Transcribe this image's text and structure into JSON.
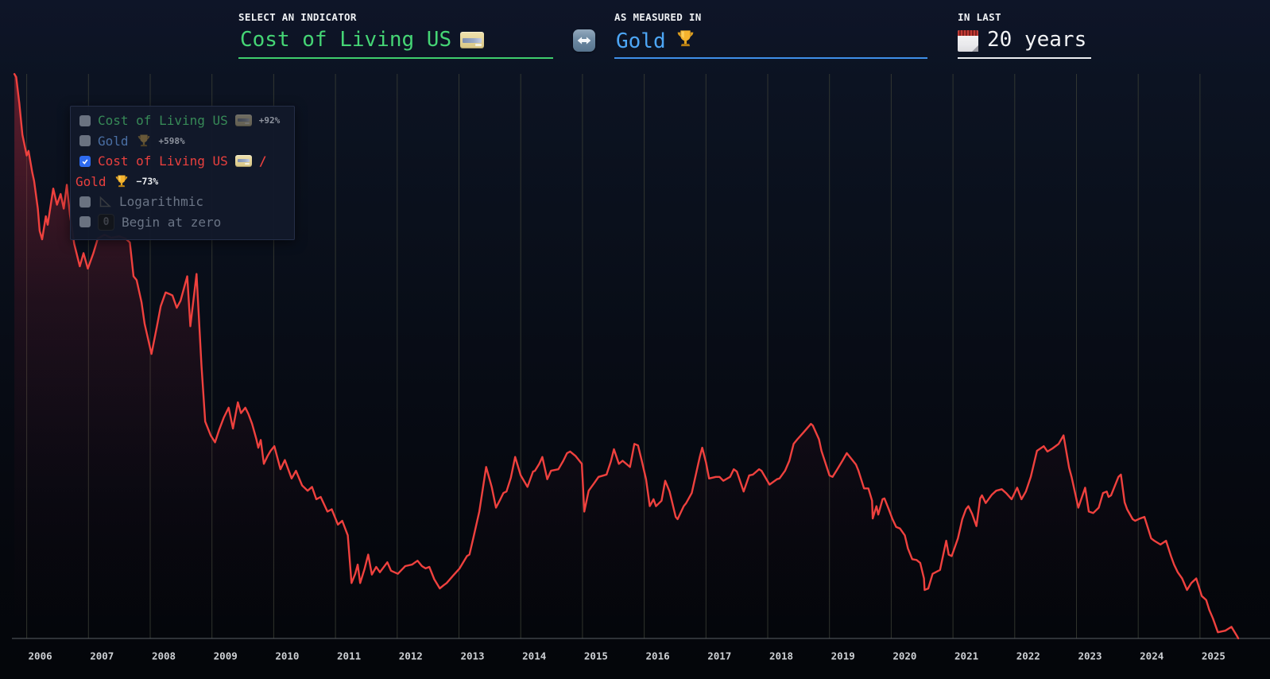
{
  "header": {
    "indicator": {
      "label": "SELECT AN INDICATOR",
      "value": "Cost of Living US",
      "icon": "credit-card",
      "accent": "#45d575"
    },
    "swap": {
      "icon": "left-right-arrows"
    },
    "measure": {
      "label": "AS MEASURED IN",
      "value": "Gold",
      "icon": "trophy",
      "accent": "#4da6f5"
    },
    "period": {
      "label": "IN LAST",
      "value": "20 years",
      "icon": "spiral-calendar",
      "accent": "#f2f3f5"
    }
  },
  "legend": {
    "items": [
      {
        "label": "Cost of Living US",
        "icon": "credit-card",
        "badge": "+92%",
        "checked": false
      },
      {
        "label": "Gold",
        "icon": "trophy",
        "badge": "+598%",
        "checked": false
      },
      {
        "indicator": "Cost of Living US",
        "icon": "credit-card",
        "separator": "/",
        "measure": "Gold",
        "icon2": "trophy",
        "badge": "−73%",
        "checked": true
      },
      {
        "label": "Logarithmic",
        "icon": "chart-decreasing",
        "checked": false
      },
      {
        "label": "Begin at zero",
        "icon": "zero-keycap",
        "checked": false
      }
    ]
  },
  "colors": {
    "series_red": "#ef413e",
    "indicator_green": "#45d575",
    "measure_blue": "#4da6f5",
    "grid": "#3f4338",
    "axis": "#5a5f66",
    "tick_text": "#cdd0d4",
    "fill_top": "rgba(222,48,64,0.40)"
  },
  "chart_data": {
    "type": "line",
    "title": "Cost of Living US / Gold (indexed, start = 100)",
    "x_ticks": [
      2006,
      2007,
      2008,
      2009,
      2010,
      2011,
      2012,
      2013,
      2014,
      2015,
      2016,
      2017,
      2018,
      2019,
      2020,
      2021,
      2022,
      2023,
      2024,
      2025
    ],
    "x_range": [
      2005.75,
      2025.7
    ],
    "y_range": [
      26,
      101
    ],
    "y_axis_labels": false,
    "grid": "vertical-years",
    "legend_position": "top-left-overlay",
    "series": [
      {
        "name": "Cost of Living US / Gold",
        "color": "#ef413e",
        "change_pct": -73,
        "points": [
          [
            2005.8,
            100.4
          ],
          [
            2005.83,
            100.0
          ],
          [
            2005.88,
            96.6
          ],
          [
            2005.93,
            92.5
          ],
          [
            2006.0,
            89.8
          ],
          [
            2006.03,
            90.4
          ],
          [
            2006.09,
            87.6
          ],
          [
            2006.12,
            86.5
          ],
          [
            2006.18,
            82.9
          ],
          [
            2006.21,
            80.0
          ],
          [
            2006.25,
            78.9
          ],
          [
            2006.31,
            81.9
          ],
          [
            2006.34,
            80.8
          ],
          [
            2006.43,
            85.5
          ],
          [
            2006.49,
            83.4
          ],
          [
            2006.55,
            84.8
          ],
          [
            2006.6,
            82.9
          ],
          [
            2006.65,
            86.0
          ],
          [
            2006.7,
            82.1
          ],
          [
            2006.77,
            78.3
          ],
          [
            2006.86,
            75.4
          ],
          [
            2006.92,
            77.1
          ],
          [
            2006.99,
            75.1
          ],
          [
            2007.08,
            77.1
          ],
          [
            2007.15,
            79.0
          ],
          [
            2007.26,
            79.5
          ],
          [
            2007.37,
            79.1
          ],
          [
            2007.5,
            79.3
          ],
          [
            2007.6,
            79.0
          ],
          [
            2007.67,
            78.5
          ],
          [
            2007.73,
            74.1
          ],
          [
            2007.78,
            73.6
          ],
          [
            2007.86,
            70.7
          ],
          [
            2007.91,
            67.9
          ],
          [
            2008.02,
            64.0
          ],
          [
            2008.11,
            67.6
          ],
          [
            2008.17,
            70.2
          ],
          [
            2008.25,
            72.0
          ],
          [
            2008.31,
            71.8
          ],
          [
            2008.36,
            71.6
          ],
          [
            2008.43,
            70.0
          ],
          [
            2008.49,
            70.9
          ],
          [
            2008.6,
            74.1
          ],
          [
            2008.65,
            67.6
          ],
          [
            2008.75,
            74.4
          ],
          [
            2008.83,
            62.5
          ],
          [
            2008.89,
            55.2
          ],
          [
            2008.98,
            53.4
          ],
          [
            2009.05,
            52.5
          ],
          [
            2009.12,
            54.2
          ],
          [
            2009.19,
            55.7
          ],
          [
            2009.27,
            57.0
          ],
          [
            2009.34,
            54.3
          ],
          [
            2009.42,
            57.7
          ],
          [
            2009.47,
            56.3
          ],
          [
            2009.54,
            57.0
          ],
          [
            2009.59,
            56.2
          ],
          [
            2009.65,
            54.9
          ],
          [
            2009.72,
            52.9
          ],
          [
            2009.75,
            51.8
          ],
          [
            2009.79,
            52.8
          ],
          [
            2009.84,
            49.7
          ],
          [
            2009.9,
            50.7
          ],
          [
            2009.95,
            51.4
          ],
          [
            2010.01,
            52.0
          ],
          [
            2010.11,
            49.0
          ],
          [
            2010.18,
            50.2
          ],
          [
            2010.29,
            47.8
          ],
          [
            2010.36,
            48.8
          ],
          [
            2010.46,
            46.9
          ],
          [
            2010.55,
            46.2
          ],
          [
            2010.62,
            46.7
          ],
          [
            2010.69,
            45.1
          ],
          [
            2010.76,
            45.4
          ],
          [
            2010.87,
            43.5
          ],
          [
            2010.94,
            43.8
          ],
          [
            2011.04,
            41.8
          ],
          [
            2011.11,
            42.3
          ],
          [
            2011.2,
            40.4
          ],
          [
            2011.26,
            34.2
          ],
          [
            2011.32,
            35.4
          ],
          [
            2011.36,
            36.6
          ],
          [
            2011.4,
            34.2
          ],
          [
            2011.47,
            36.0
          ],
          [
            2011.53,
            37.9
          ],
          [
            2011.59,
            35.3
          ],
          [
            2011.66,
            36.3
          ],
          [
            2011.72,
            35.6
          ],
          [
            2011.84,
            36.9
          ],
          [
            2011.9,
            35.8
          ],
          [
            2012.01,
            35.4
          ],
          [
            2012.13,
            36.4
          ],
          [
            2012.24,
            36.6
          ],
          [
            2012.33,
            37.1
          ],
          [
            2012.4,
            36.4
          ],
          [
            2012.46,
            36.1
          ],
          [
            2012.52,
            36.3
          ],
          [
            2012.6,
            34.7
          ],
          [
            2012.69,
            33.5
          ],
          [
            2012.75,
            33.9
          ],
          [
            2012.8,
            34.2
          ],
          [
            2012.91,
            35.2
          ],
          [
            2013.01,
            36.1
          ],
          [
            2013.13,
            37.7
          ],
          [
            2013.17,
            37.9
          ],
          [
            2013.24,
            40.3
          ],
          [
            2013.33,
            43.5
          ],
          [
            2013.44,
            49.3
          ],
          [
            2013.53,
            46.7
          ],
          [
            2013.6,
            44.0
          ],
          [
            2013.67,
            45.1
          ],
          [
            2013.72,
            45.9
          ],
          [
            2013.77,
            46.1
          ],
          [
            2013.84,
            47.9
          ],
          [
            2013.91,
            50.6
          ],
          [
            2014.0,
            48.2
          ],
          [
            2014.11,
            46.7
          ],
          [
            2014.2,
            48.7
          ],
          [
            2014.23,
            48.8
          ],
          [
            2014.3,
            49.7
          ],
          [
            2014.35,
            50.6
          ],
          [
            2014.43,
            47.7
          ],
          [
            2014.49,
            48.8
          ],
          [
            2014.61,
            49.0
          ],
          [
            2014.69,
            50.1
          ],
          [
            2014.75,
            51.1
          ],
          [
            2014.8,
            51.3
          ],
          [
            2014.89,
            50.7
          ],
          [
            2014.99,
            49.7
          ],
          [
            2015.03,
            43.5
          ],
          [
            2015.1,
            46.2
          ],
          [
            2015.19,
            47.2
          ],
          [
            2015.26,
            48.0
          ],
          [
            2015.39,
            48.3
          ],
          [
            2015.46,
            50.0
          ],
          [
            2015.51,
            51.6
          ],
          [
            2015.59,
            49.7
          ],
          [
            2015.65,
            50.1
          ],
          [
            2015.77,
            49.3
          ],
          [
            2015.84,
            52.3
          ],
          [
            2015.9,
            52.1
          ],
          [
            2015.96,
            50.1
          ],
          [
            2016.03,
            47.7
          ],
          [
            2016.09,
            44.2
          ],
          [
            2016.15,
            45.1
          ],
          [
            2016.19,
            44.2
          ],
          [
            2016.28,
            44.9
          ],
          [
            2016.34,
            47.5
          ],
          [
            2016.41,
            46.1
          ],
          [
            2016.51,
            42.8
          ],
          [
            2016.54,
            42.5
          ],
          [
            2016.64,
            44.2
          ],
          [
            2016.68,
            44.6
          ],
          [
            2016.77,
            45.9
          ],
          [
            2016.9,
            50.6
          ],
          [
            2016.94,
            51.8
          ],
          [
            2017.0,
            49.9
          ],
          [
            2017.05,
            47.8
          ],
          [
            2017.16,
            48.0
          ],
          [
            2017.22,
            48.0
          ],
          [
            2017.28,
            47.5
          ],
          [
            2017.39,
            48.0
          ],
          [
            2017.45,
            49.0
          ],
          [
            2017.5,
            48.7
          ],
          [
            2017.61,
            46.1
          ],
          [
            2017.7,
            48.2
          ],
          [
            2017.76,
            48.3
          ],
          [
            2017.86,
            49.0
          ],
          [
            2017.9,
            48.8
          ],
          [
            2018.03,
            47.0
          ],
          [
            2018.15,
            47.7
          ],
          [
            2018.19,
            47.8
          ],
          [
            2018.28,
            48.8
          ],
          [
            2018.35,
            50.1
          ],
          [
            2018.42,
            52.3
          ],
          [
            2018.48,
            52.9
          ],
          [
            2018.57,
            53.7
          ],
          [
            2018.7,
            54.9
          ],
          [
            2018.73,
            54.7
          ],
          [
            2018.83,
            52.9
          ],
          [
            2018.87,
            51.4
          ],
          [
            2019.0,
            48.2
          ],
          [
            2019.05,
            48.0
          ],
          [
            2019.12,
            48.9
          ],
          [
            2019.21,
            50.1
          ],
          [
            2019.28,
            51.1
          ],
          [
            2019.35,
            50.4
          ],
          [
            2019.43,
            49.6
          ],
          [
            2019.47,
            48.8
          ],
          [
            2019.56,
            46.5
          ],
          [
            2019.63,
            46.5
          ],
          [
            2019.69,
            44.9
          ],
          [
            2019.7,
            42.6
          ],
          [
            2019.76,
            44.2
          ],
          [
            2019.79,
            43.1
          ],
          [
            2019.86,
            45.1
          ],
          [
            2019.89,
            45.2
          ],
          [
            2019.96,
            43.8
          ],
          [
            2020.02,
            42.5
          ],
          [
            2020.08,
            41.5
          ],
          [
            2020.14,
            41.3
          ],
          [
            2020.22,
            40.4
          ],
          [
            2020.27,
            38.7
          ],
          [
            2020.34,
            37.3
          ],
          [
            2020.41,
            37.2
          ],
          [
            2020.47,
            36.8
          ],
          [
            2020.53,
            34.8
          ],
          [
            2020.54,
            33.3
          ],
          [
            2020.6,
            33.5
          ],
          [
            2020.67,
            35.4
          ],
          [
            2020.72,
            35.6
          ],
          [
            2020.79,
            35.9
          ],
          [
            2020.89,
            39.7
          ],
          [
            2020.93,
            37.9
          ],
          [
            2020.98,
            37.7
          ],
          [
            2021.08,
            40.0
          ],
          [
            2021.15,
            42.5
          ],
          [
            2021.21,
            43.8
          ],
          [
            2021.25,
            44.2
          ],
          [
            2021.31,
            43.2
          ],
          [
            2021.38,
            41.6
          ],
          [
            2021.44,
            45.2
          ],
          [
            2021.47,
            45.6
          ],
          [
            2021.53,
            44.6
          ],
          [
            2021.63,
            45.7
          ],
          [
            2021.7,
            46.2
          ],
          [
            2021.79,
            46.4
          ],
          [
            2021.86,
            45.9
          ],
          [
            2021.95,
            45.1
          ],
          [
            2022.04,
            46.6
          ],
          [
            2022.11,
            45.1
          ],
          [
            2022.18,
            46.1
          ],
          [
            2022.26,
            48.0
          ],
          [
            2022.36,
            51.4
          ],
          [
            2022.47,
            52.0
          ],
          [
            2022.53,
            51.3
          ],
          [
            2022.61,
            51.7
          ],
          [
            2022.71,
            52.3
          ],
          [
            2022.79,
            53.4
          ],
          [
            2022.88,
            49.2
          ],
          [
            2022.92,
            48.0
          ],
          [
            2023.03,
            44.0
          ],
          [
            2023.14,
            46.6
          ],
          [
            2023.2,
            43.5
          ],
          [
            2023.27,
            43.3
          ],
          [
            2023.36,
            44.0
          ],
          [
            2023.43,
            45.9
          ],
          [
            2023.49,
            46.1
          ],
          [
            2023.52,
            45.4
          ],
          [
            2023.56,
            45.6
          ],
          [
            2023.68,
            48.0
          ],
          [
            2023.72,
            48.3
          ],
          [
            2023.78,
            44.7
          ],
          [
            2023.82,
            43.8
          ],
          [
            2023.91,
            42.5
          ],
          [
            2023.95,
            42.3
          ],
          [
            2024.03,
            42.6
          ],
          [
            2024.1,
            42.8
          ],
          [
            2024.21,
            40.0
          ],
          [
            2024.26,
            39.7
          ],
          [
            2024.36,
            39.2
          ],
          [
            2024.45,
            39.7
          ],
          [
            2024.53,
            37.7
          ],
          [
            2024.58,
            36.6
          ],
          [
            2024.64,
            35.6
          ],
          [
            2024.71,
            34.8
          ],
          [
            2024.79,
            33.3
          ],
          [
            2024.86,
            34.2
          ],
          [
            2024.94,
            34.8
          ],
          [
            2025.03,
            32.5
          ],
          [
            2025.1,
            32.0
          ],
          [
            2025.15,
            30.7
          ],
          [
            2025.21,
            29.6
          ],
          [
            2025.29,
            27.8
          ],
          [
            2025.41,
            28.0
          ],
          [
            2025.51,
            28.5
          ],
          [
            2025.6,
            27.3
          ],
          [
            2025.62,
            27.0
          ]
        ]
      }
    ]
  }
}
